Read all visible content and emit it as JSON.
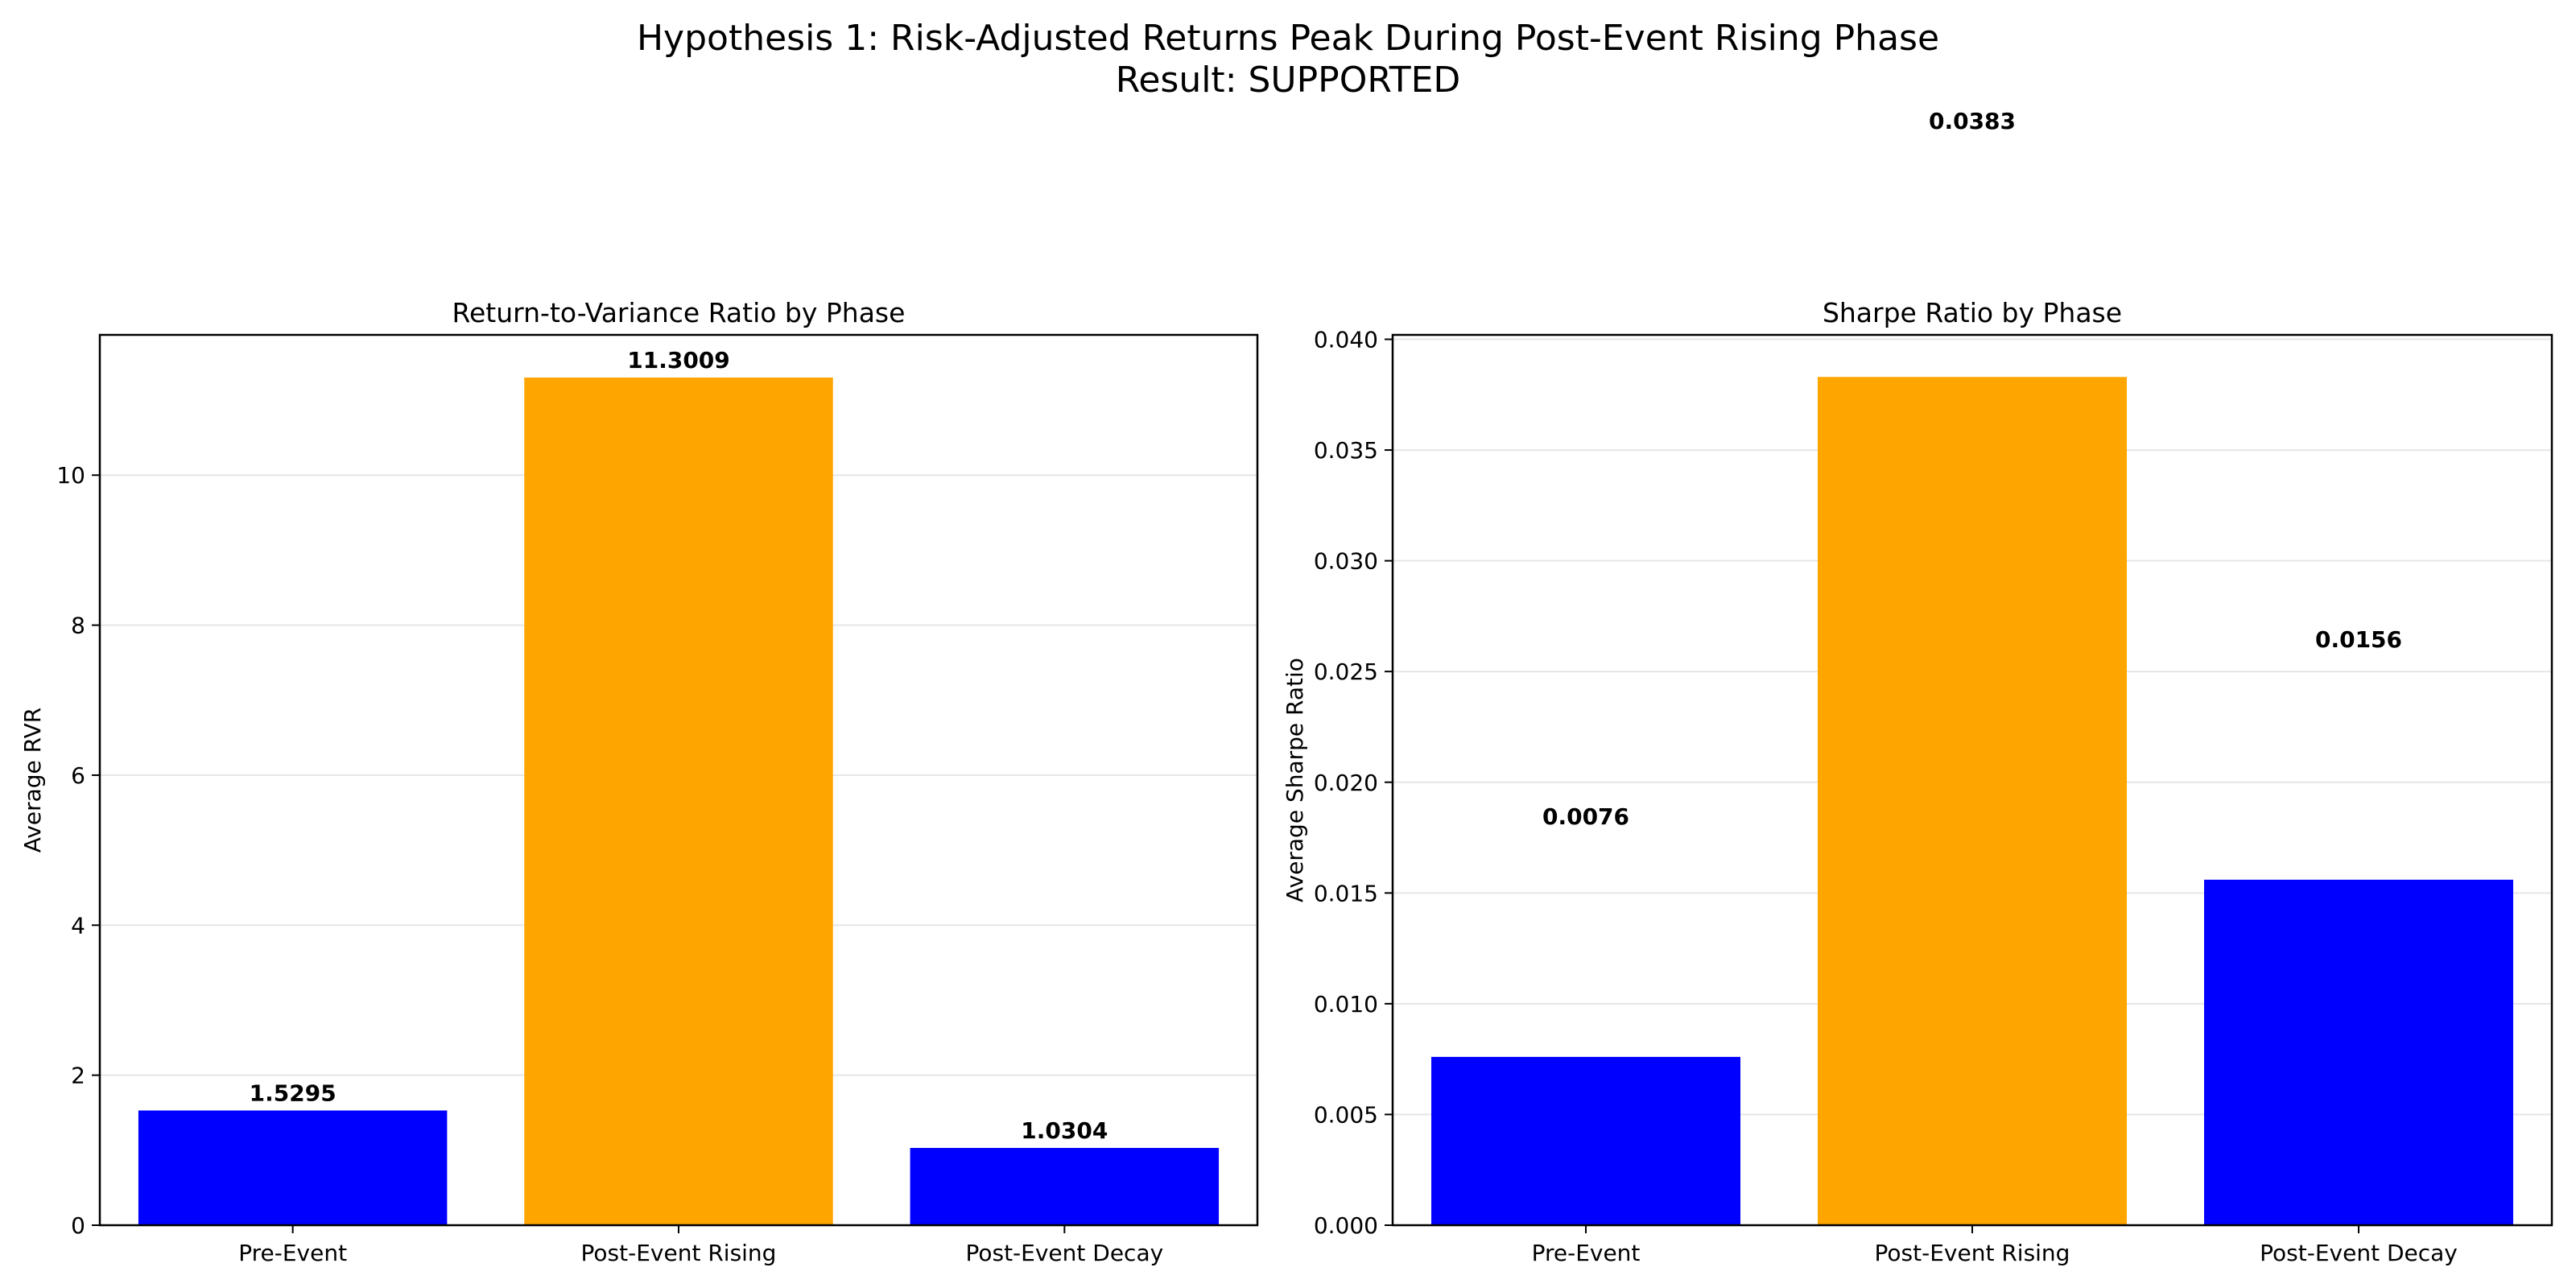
{
  "figure": {
    "title_line1": "Hypothesis 1: Risk-Adjusted Returns Peak During Post-Event Rising Phase",
    "title_line2": "Result: SUPPORTED"
  },
  "colors": {
    "bar_default": "#0000ff",
    "bar_highlight": "#ffa500",
    "grid": "#e6e6e6",
    "axis": "#000000"
  },
  "chart_data": [
    {
      "type": "bar",
      "title": "Return-to-Variance Ratio by Phase",
      "xlabel": "",
      "ylabel": "Average RVR",
      "categories": [
        "Pre-Event",
        "Post-Event Rising",
        "Post-Event Decay"
      ],
      "values": [
        1.5295,
        11.3009,
        1.0304
      ],
      "value_labels": [
        "1.5295",
        "11.3009",
        "1.0304"
      ],
      "bar_colors": [
        "#0000ff",
        "#ffa500",
        "#0000ff"
      ],
      "ylim": [
        0,
        11.87
      ],
      "yticks": [
        0,
        2,
        4,
        6,
        8,
        10
      ],
      "ytick_labels": [
        "0",
        "2",
        "4",
        "6",
        "8",
        "10"
      ],
      "grid": true
    },
    {
      "type": "bar",
      "title": "Sharpe Ratio by Phase",
      "xlabel": "",
      "ylabel": "Average Sharpe Ratio",
      "categories": [
        "Pre-Event",
        "Post-Event Rising",
        "Post-Event Decay"
      ],
      "values": [
        0.0076,
        0.0383,
        0.0156
      ],
      "value_labels": [
        "0.0076",
        "0.0383",
        "0.0156"
      ],
      "value_label_y": [
        0.0181,
        0.0495,
        0.0261
      ],
      "bar_colors": [
        "#0000ff",
        "#ffa500",
        "#0000ff"
      ],
      "ylim": [
        0,
        0.0402
      ],
      "yticks": [
        0,
        0.005,
        0.01,
        0.015,
        0.02,
        0.025,
        0.03,
        0.035,
        0.04
      ],
      "ytick_labels": [
        "0.000",
        "0.005",
        "0.010",
        "0.015",
        "0.020",
        "0.025",
        "0.030",
        "0.035",
        "0.040"
      ],
      "grid": true
    }
  ]
}
